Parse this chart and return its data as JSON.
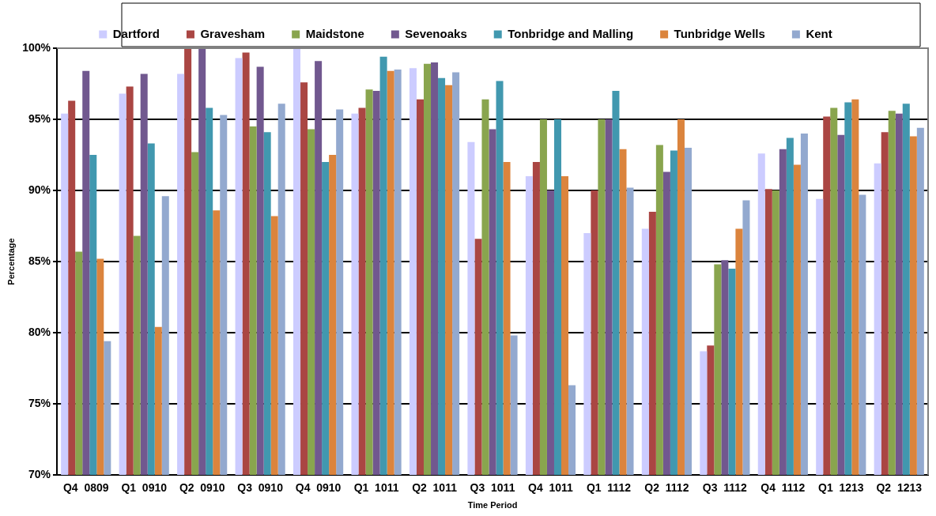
{
  "chart_data": {
    "type": "bar",
    "xlabel": "Time Period",
    "ylabel": "Percentage",
    "categories": [
      "Q4  0809",
      "Q1  0910",
      "Q2  0910",
      "Q3  0910",
      "Q4  0910",
      "Q1  1011",
      "Q2  1011",
      "Q3  1011",
      "Q4  1011",
      "Q1  1112",
      "Q2  1112",
      "Q3  1112",
      "Q4  1112",
      "Q1  1213",
      "Q2  1213"
    ],
    "series": [
      {
        "name": "Dartford",
        "color": "#ccccff",
        "values": [
          95.4,
          96.8,
          98.2,
          99.3,
          100,
          95.4,
          98.6,
          93.4,
          91.0,
          87.0,
          87.3,
          78.7,
          92.6,
          89.4,
          91.9
        ]
      },
      {
        "name": "Gravesham",
        "color": "#aa4643",
        "values": [
          96.3,
          97.3,
          100,
          99.7,
          97.6,
          95.8,
          96.4,
          86.6,
          92.0,
          90.0,
          88.5,
          79.1,
          90.1,
          95.2,
          94.1
        ]
      },
      {
        "name": "Maidstone",
        "color": "#89a54e",
        "values": [
          85.7,
          86.8,
          92.7,
          94.5,
          94.3,
          97.1,
          98.9,
          96.4,
          95.0,
          95.0,
          93.2,
          84.8,
          90.0,
          95.8,
          95.6
        ]
      },
      {
        "name": "Sevenoaks",
        "color": "#71588f",
        "values": [
          98.4,
          98.2,
          100,
          98.7,
          99.1,
          97.0,
          99.0,
          94.3,
          90.0,
          95.0,
          91.3,
          85.1,
          92.9,
          93.9,
          95.4
        ]
      },
      {
        "name": "Tonbridge and Malling",
        "color": "#4198af",
        "values": [
          92.5,
          93.3,
          95.8,
          94.1,
          92.0,
          99.4,
          97.9,
          97.7,
          95.0,
          97.0,
          92.8,
          84.5,
          93.7,
          96.2,
          96.1
        ]
      },
      {
        "name": "Tunbridge Wells",
        "color": "#db843d",
        "values": [
          85.2,
          80.4,
          88.6,
          88.2,
          92.5,
          98.4,
          97.4,
          92.0,
          91.0,
          92.9,
          95.0,
          87.3,
          91.8,
          96.4,
          93.8
        ]
      },
      {
        "name": "Kent",
        "color": "#93a9cf",
        "values": [
          79.4,
          89.6,
          95.3,
          96.1,
          95.7,
          98.5,
          98.3,
          79.8,
          76.3,
          90.2,
          93.0,
          89.3,
          94.0,
          89.7,
          94.4
        ]
      }
    ],
    "ylim": [
      70,
      100
    ],
    "yticks": [
      {
        "value": 70,
        "label": "70%"
      },
      {
        "value": 75,
        "label": "75%"
      },
      {
        "value": 80,
        "label": "80%"
      },
      {
        "value": 85,
        "label": "85%"
      },
      {
        "value": 90,
        "label": "90%"
      },
      {
        "value": 95,
        "label": "95%"
      },
      {
        "value": 100,
        "label": "100%"
      }
    ],
    "grid": "y",
    "legend": "top"
  }
}
